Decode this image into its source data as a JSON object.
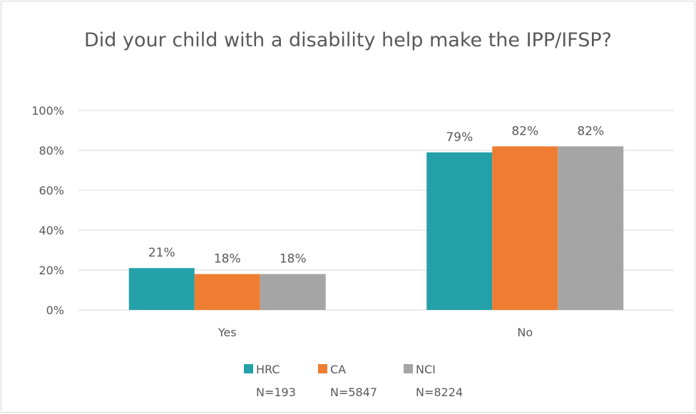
{
  "chart_data": {
    "type": "bar",
    "title": "Did your child with a disability help make the IPP/IFSP?",
    "categories": [
      "Yes",
      "No"
    ],
    "series": [
      {
        "name": "HRC",
        "legend_sub": "N=193",
        "color": "#24a0a8",
        "values": [
          21,
          79
        ],
        "labels": [
          "21%",
          "79%"
        ]
      },
      {
        "name": "CA",
        "legend_sub": "N=5847",
        "color": "#ee7d31",
        "values": [
          18,
          82
        ],
        "labels": [
          "18%",
          "82%"
        ]
      },
      {
        "name": "NCI",
        "legend_sub": "N=8224",
        "color": "#a5a5a5",
        "values": [
          18,
          82
        ],
        "labels": [
          "18%",
          "82%"
        ]
      }
    ],
    "ylim": [
      0,
      100
    ],
    "yticks": [
      0,
      20,
      40,
      60,
      80,
      100
    ],
    "ytick_labels": [
      "0%",
      "20%",
      "40%",
      "60%",
      "80%",
      "100%"
    ],
    "grid": true,
    "legend_position": "bottom"
  }
}
